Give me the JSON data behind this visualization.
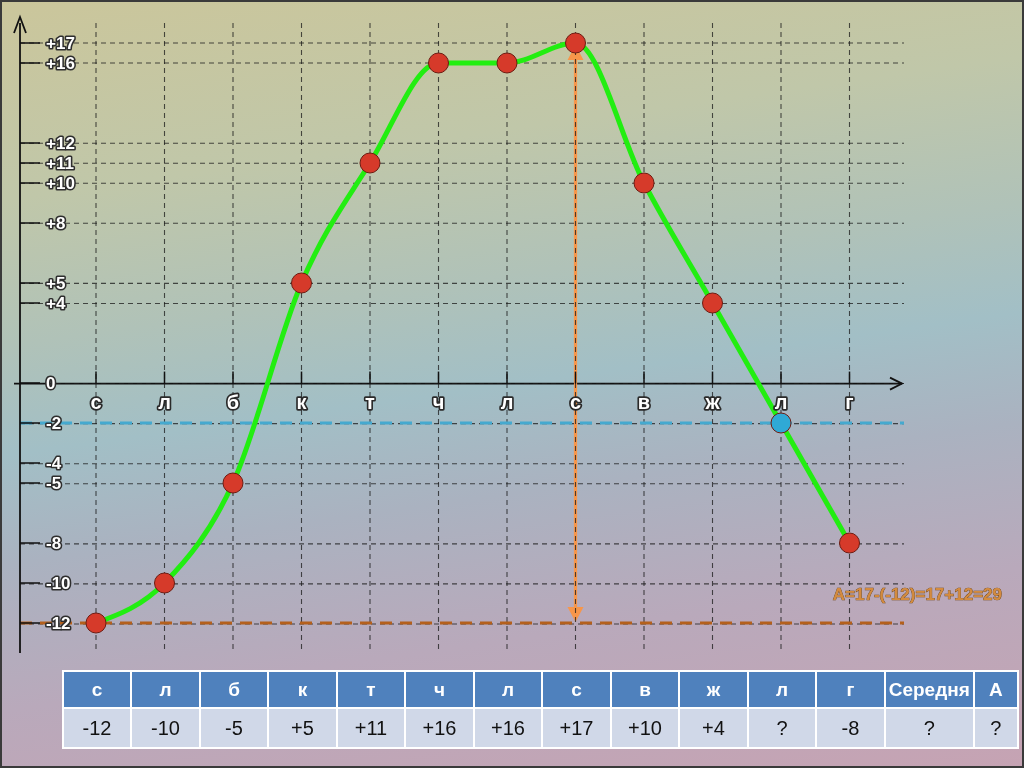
{
  "chart_data": {
    "type": "line",
    "categories": [
      "с",
      "л",
      "б",
      "к",
      "т",
      "ч",
      "л",
      "с",
      "в",
      "ж",
      "л",
      "г"
    ],
    "values": [
      -12,
      -10,
      -5,
      5,
      11,
      16,
      16,
      17,
      10,
      4,
      -2,
      -8
    ],
    "value_labels": [
      "-12",
      "-10",
      "-5",
      "+5",
      "+11",
      "+16",
      "+16",
      "+17",
      "+10",
      "+4",
      "?",
      "-8"
    ],
    "color": "#22ee11",
    "colors": [
      "#d63a2a",
      "#d63a2a",
      "#d63a2a",
      "#d63a2a",
      "#d63a2a",
      "#d63a2a",
      "#d63a2a",
      "#d63a2a",
      "#d63a2a",
      "#d63a2a",
      "#2fa9d6",
      "#d63a2a"
    ],
    "marker": "circle",
    "ylim": [
      -13.5,
      18
    ],
    "yticks": [
      {
        "value": 17,
        "label": "+17"
      },
      {
        "value": 16,
        "label": "+16"
      },
      {
        "value": 12,
        "label": "+12"
      },
      {
        "value": 11,
        "label": "+11"
      },
      {
        "value": 10,
        "label": "+10"
      },
      {
        "value": 8,
        "label": "+8"
      },
      {
        "value": 5,
        "label": "+5"
      },
      {
        "value": 4,
        "label": "+4"
      },
      0,
      -2,
      -4,
      -5,
      -8,
      -10,
      -12
    ],
    "grid": true,
    "ref_lines": [
      {
        "axis": "y",
        "value": -2,
        "color": "#45a9cf",
        "line_style": "dashed"
      },
      {
        "axis": "y",
        "value": -12,
        "color": "#b4601c",
        "line_style": "dashed"
      }
    ],
    "annotations": [
      "A=17-(-12)=17+12=29",
      "Середня",
      "?",
      "A",
      "?"
    ]
  }
}
